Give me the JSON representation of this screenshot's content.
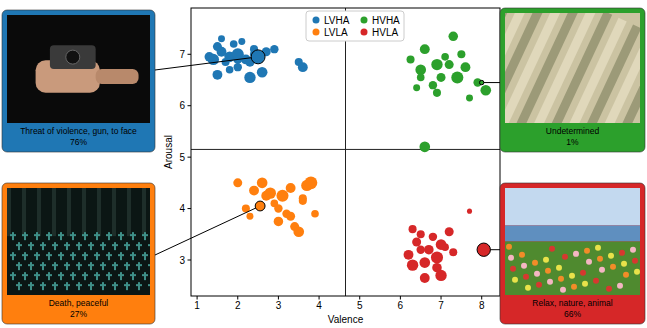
{
  "chart_data": {
    "type": "scatter",
    "x_label": "Valence",
    "y_label": "Arousal",
    "xlim": [
      0.85,
      8.45
    ],
    "ylim": [
      2.3,
      7.9
    ],
    "xticks": [
      1,
      2,
      3,
      4,
      5,
      6,
      7,
      8
    ],
    "yticks": [
      3,
      4,
      5,
      6,
      7
    ],
    "grid": false,
    "legend": "upper center",
    "marker": "circle",
    "thresholds": {
      "valence": 4.65,
      "arousal": 5.15
    },
    "series": [
      {
        "name": "LVHA",
        "color": "#1f77b4",
        "x": [
          1.4,
          1.5,
          1.6,
          1.7,
          1.8,
          1.9,
          2.0,
          2.0,
          2.1,
          2.2,
          2.3,
          2.4,
          2.6,
          2.7,
          1.5,
          1.8,
          2.3,
          2.9,
          3.5,
          3.6,
          1.6,
          2.0,
          2.4,
          1.3
        ],
        "values": [
          6.9,
          7.15,
          7.05,
          6.85,
          6.95,
          7.2,
          7.0,
          6.75,
          7.25,
          6.9,
          6.55,
          7.1,
          6.65,
          7.05,
          6.6,
          6.7,
          6.85,
          7.1,
          6.85,
          6.75,
          7.3,
          6.9,
          7.0,
          6.95
        ],
        "sizes": [
          40,
          25,
          30,
          20,
          35,
          18,
          45,
          22,
          15,
          30,
          40,
          20,
          35,
          25,
          30,
          18,
          28,
          22,
          20,
          30,
          15,
          25,
          20,
          28
        ]
      },
      {
        "name": "LVLA",
        "color": "#ff7f0e",
        "x": [
          2.0,
          2.2,
          2.4,
          2.6,
          2.8,
          2.9,
          3.0,
          3.1,
          3.2,
          3.3,
          3.4,
          3.5,
          3.6,
          3.7,
          3.8,
          3.9,
          2.7,
          3.0,
          3.3,
          3.6,
          2.3
        ],
        "values": [
          4.5,
          4.0,
          4.35,
          4.5,
          4.3,
          4.1,
          3.75,
          4.25,
          3.9,
          4.4,
          3.65,
          3.55,
          4.15,
          4.45,
          4.5,
          3.9,
          4.25,
          4.0,
          3.85,
          4.2,
          3.85
        ],
        "sizes": [
          25,
          20,
          30,
          35,
          40,
          18,
          28,
          45,
          22,
          30,
          25,
          35,
          20,
          40,
          50,
          18,
          30,
          22,
          25,
          20,
          15
        ]
      },
      {
        "name": "HVHA",
        "color": "#2ca02c",
        "x": [
          6.25,
          6.4,
          6.5,
          6.6,
          6.8,
          6.9,
          7.0,
          7.1,
          7.3,
          7.4,
          7.5,
          7.6,
          7.7,
          7.9,
          8.1,
          6.5,
          6.9,
          7.2,
          6.6
        ],
        "values": [
          6.9,
          6.35,
          6.7,
          7.1,
          6.4,
          6.8,
          6.55,
          6.95,
          7.35,
          6.55,
          7.0,
          6.75,
          6.15,
          6.45,
          6.3,
          6.55,
          6.25,
          6.8,
          5.2
        ],
        "sizes": [
          20,
          15,
          35,
          30,
          22,
          40,
          25,
          18,
          28,
          45,
          20,
          30,
          15,
          22,
          35,
          18,
          20,
          25,
          35
        ]
      },
      {
        "name": "HVLA",
        "color": "#d62728",
        "x": [
          6.2,
          6.3,
          6.4,
          6.5,
          6.6,
          6.7,
          6.8,
          6.9,
          7.0,
          7.1,
          7.2,
          6.3,
          6.6,
          7.0,
          6.5,
          6.9,
          7.3,
          7.7
        ],
        "values": [
          3.1,
          2.9,
          3.35,
          3.5,
          2.95,
          3.2,
          3.45,
          3.05,
          2.7,
          3.25,
          3.55,
          3.6,
          2.65,
          3.3,
          3.2,
          2.85,
          3.15,
          3.95
        ],
        "sizes": [
          30,
          40,
          25,
          20,
          35,
          28,
          22,
          45,
          40,
          18,
          25,
          20,
          30,
          35,
          22,
          28,
          20,
          8
        ]
      }
    ],
    "annotations": [
      {
        "series": 0,
        "x": 2.5,
        "y": 6.95,
        "size": 60,
        "caption": "Threat of violence, gun, to face",
        "score": "76%"
      },
      {
        "series": 2,
        "x": 8.0,
        "y": 6.45,
        "size": 6,
        "caption": "Undetermined",
        "score": "1%"
      },
      {
        "series": 1,
        "x": 2.55,
        "y": 4.05,
        "size": 30,
        "caption": "Death, peaceful",
        "score": "27%"
      },
      {
        "series": 3,
        "x": 8.05,
        "y": 3.2,
        "size": 55,
        "caption": "Relax, nature, animal",
        "score": "66%"
      }
    ]
  }
}
